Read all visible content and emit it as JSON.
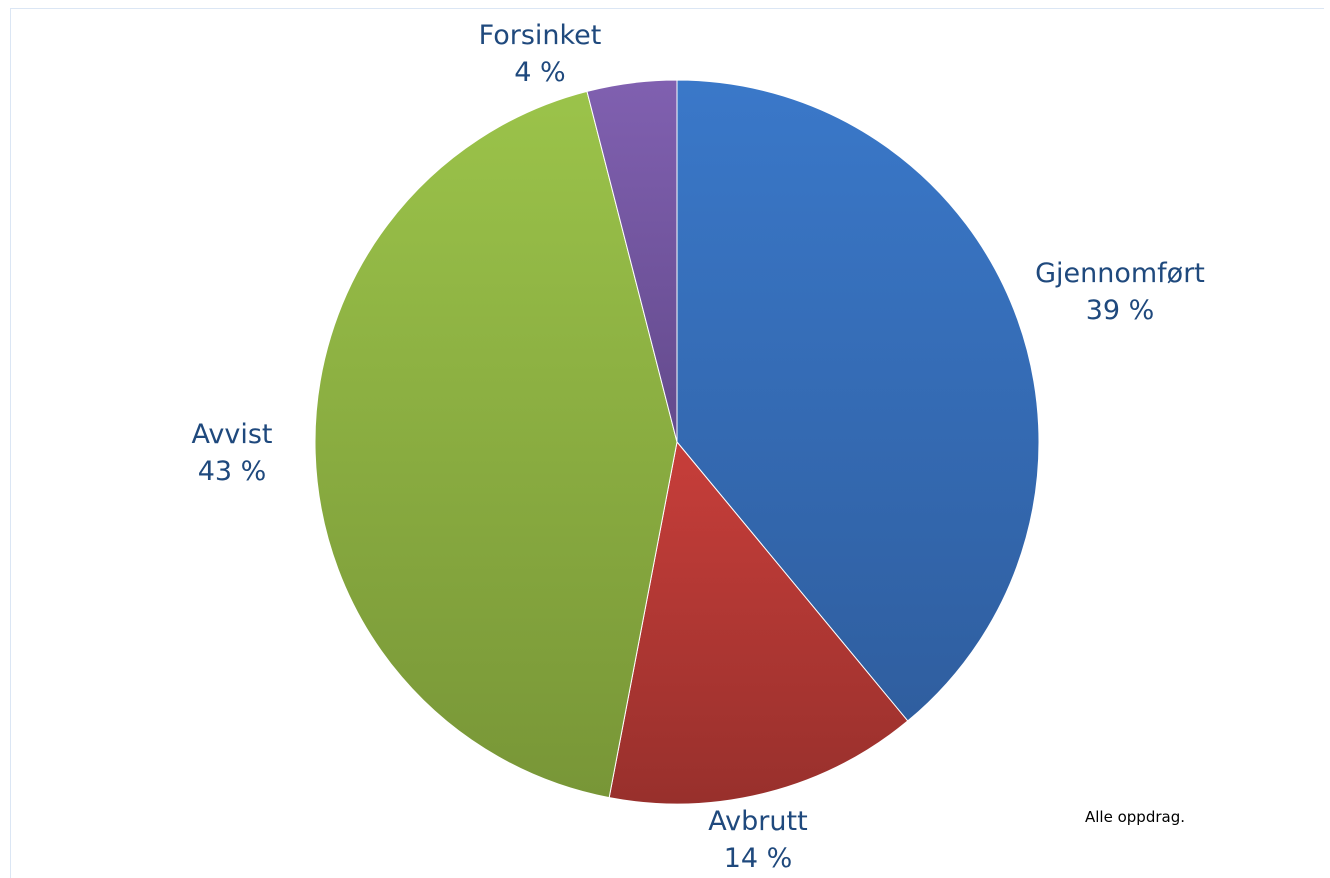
{
  "chart_data": {
    "type": "pie",
    "title": "",
    "slices": [
      {
        "label": "Gjennomført",
        "value": 39,
        "value_label": "39 %",
        "color": "#3a78c9",
        "color_dark": "#2f5e9f"
      },
      {
        "label": "Avbrutt",
        "value": 14,
        "value_label": "14 %",
        "color": "#c73e3a",
        "color_dark": "#98302c"
      },
      {
        "label": "Avvist",
        "value": 43,
        "value_label": "43 %",
        "color": "#9bc34a",
        "color_dark": "#789637"
      },
      {
        "label": "Forsinket",
        "value": 4,
        "value_label": "4 %",
        "color": "#8060b0",
        "color_dark": "#634a8c"
      }
    ],
    "start_angle": "12 o'clock",
    "direction": "clockwise",
    "legend": "none",
    "label_color": "#1f497d"
  },
  "note": "Alle oppdrag."
}
